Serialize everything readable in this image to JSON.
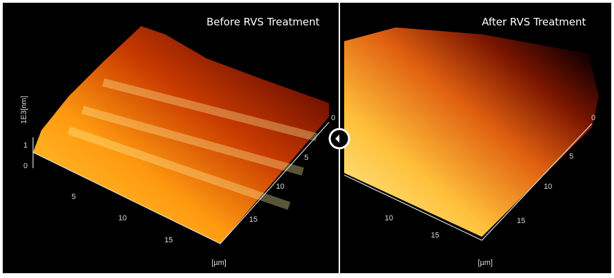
{
  "slider": {
    "before_label": "Before RVS Treatment",
    "after_label": "After RVS Treatment"
  },
  "before_image": {
    "z_axis_label": "1E3[nm]",
    "z_ticks": [
      "1",
      "0"
    ],
    "x_ticks": [
      "5",
      "10",
      "15"
    ],
    "y_ticks": [
      "0",
      "5",
      "10",
      "15"
    ],
    "unit": "[µm]"
  },
  "after_image": {
    "x_ticks": [
      "10",
      "15"
    ],
    "y_ticks": [
      "0",
      "5",
      "10",
      "15"
    ],
    "unit": "[µm]"
  }
}
